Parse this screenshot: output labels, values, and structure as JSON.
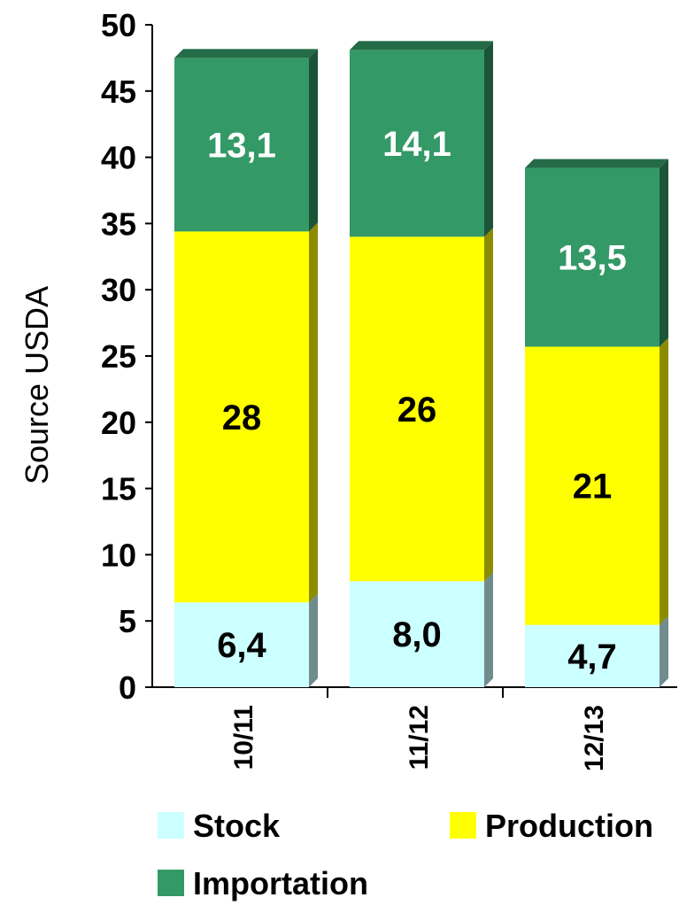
{
  "chart_data": {
    "type": "bar",
    "stacked": true,
    "categories": [
      "10/11",
      "11/12",
      "12/13"
    ],
    "series": [
      {
        "name": "Stock",
        "values": [
          6.4,
          8.0,
          4.7
        ],
        "labels": [
          "6,4",
          "8,0",
          "4,7"
        ],
        "color": "#ccffff",
        "label_color": "#000000"
      },
      {
        "name": "Production",
        "values": [
          28,
          26,
          21
        ],
        "labels": [
          "28",
          "26",
          "21"
        ],
        "color": "#ffff00",
        "label_color": "#000000"
      },
      {
        "name": "Importation",
        "values": [
          13.1,
          14.1,
          13.5
        ],
        "labels": [
          "13,1",
          "14,1",
          "13,5"
        ],
        "color": "#339966",
        "label_color": "#ffffff"
      }
    ],
    "ylabel": "Source USDA",
    "ylim": [
      0,
      50
    ],
    "yticks": [
      0,
      5,
      10,
      15,
      20,
      25,
      30,
      35,
      40,
      45,
      50
    ],
    "grid": false,
    "legend_position": "bottom"
  }
}
